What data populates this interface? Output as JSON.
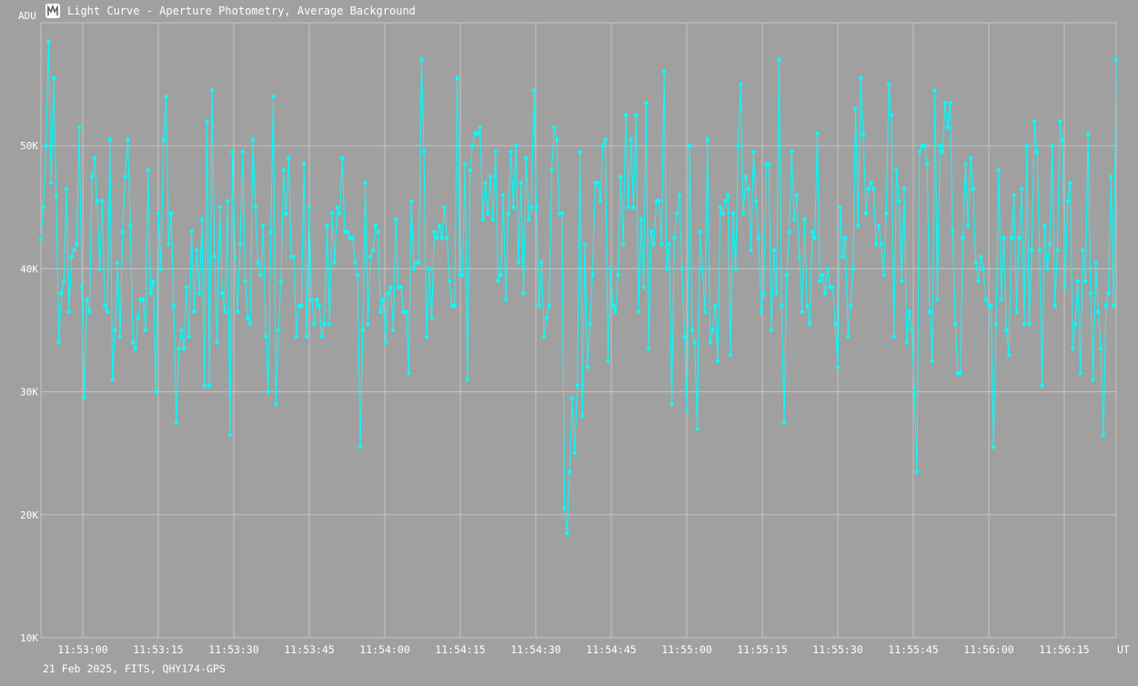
{
  "window": {
    "title": "Light Curve - Aperture Photometry, Average Background",
    "icon": "app-icon"
  },
  "footer": {
    "info": "21 Feb 2025, FITS, QHY174-GPS"
  },
  "colors": {
    "background": "#a0a0a0",
    "grid": "#c4c4c4",
    "series": "#00ffff",
    "text": "#ffffff"
  },
  "chart_data": {
    "type": "line",
    "ylabel": "ADU",
    "xlabel": "UT",
    "ylim": [
      10000,
      60000
    ],
    "xlim_seconds": [
      0,
      214
    ],
    "grid": true,
    "x_ticks": [
      "11:53:00",
      "11:53:15",
      "11:53:30",
      "11:53:45",
      "11:54:00",
      "11:54:15",
      "11:54:30",
      "11:54:45",
      "11:55:00",
      "11:55:15",
      "11:55:30",
      "11:55:45",
      "11:56:00",
      "11:56:15"
    ],
    "y_ticks": [
      "10K",
      "20K",
      "30K",
      "40K",
      "50K"
    ],
    "series": [
      {
        "values": [
          42400,
          45000,
          50000,
          58500,
          47000,
          55500,
          46000,
          34000,
          38000,
          39000,
          46500,
          36500,
          41000,
          41500,
          42000,
          51500,
          38500,
          29500,
          37500,
          36500,
          47500,
          49000,
          45500,
          40000,
          45500,
          37000,
          36500,
          50500,
          31000,
          35000,
          40500,
          34500,
          43000,
          47500,
          50500,
          43500,
          34000,
          33500,
          36000,
          37500,
          37500,
          35000,
          48000,
          38000,
          39000,
          30000,
          44500,
          40000,
          50500,
          54000,
          42000,
          44500,
          37000,
          27500,
          33500,
          35000,
          33500,
          38500,
          34500,
          43000,
          36500,
          41500,
          38000,
          44000,
          30500,
          52000,
          30500,
          54500,
          41000,
          34000,
          45000,
          38000,
          36500,
          45500,
          26500,
          49500,
          41000,
          36500,
          42000,
          49500,
          39000,
          36000,
          35500,
          50500,
          45000,
          40500,
          39500,
          43500,
          34500,
          30000,
          43000,
          54000,
          29000,
          35000,
          39000,
          48000,
          44500,
          49000,
          41000,
          41000,
          34500,
          37000,
          37000,
          48500,
          34500,
          45000,
          37500,
          35500,
          37500,
          37000,
          34500,
          35500,
          43500,
          35500,
          44500,
          40500,
          45000,
          44500,
          49000,
          43000,
          43000,
          42500,
          42500,
          40500,
          39500,
          25500,
          35000,
          47000,
          35500,
          41000,
          41500,
          43500,
          43000,
          36500,
          37500,
          34000,
          38000,
          38500,
          35000,
          44000,
          38500,
          38500,
          36500,
          36500,
          31500,
          45500,
          40000,
          40500,
          40500,
          57000,
          49500,
          34500,
          40000,
          36000,
          43000,
          42500,
          43500,
          42500,
          45000,
          42500,
          39000,
          37000,
          37000,
          55500,
          39500,
          39500,
          48500,
          31000,
          48000,
          50000,
          51000,
          51000,
          51500,
          44000,
          47000,
          44500,
          47500,
          44000,
          49500,
          39000,
          39500,
          46000,
          37500,
          44500,
          49500,
          45000,
          50000,
          40500,
          47000,
          38000,
          49000,
          44000,
          45000,
          54500,
          45000,
          37000,
          40500,
          34500,
          36000,
          37000,
          48000,
          51500,
          50500,
          44500,
          44500,
          20500,
          18500,
          23500,
          29500,
          25000,
          30500,
          49500,
          28000,
          42000,
          32000,
          35500,
          39500,
          47000,
          47000,
          45500,
          50000,
          50500,
          32500,
          40000,
          37000,
          36500,
          39500,
          47500,
          42000,
          52500,
          45000,
          50500,
          45000,
          52500,
          36500,
          44000,
          38500,
          53500,
          33500,
          43000,
          42000,
          45500,
          45500,
          42000,
          56000,
          40000,
          42000,
          29000,
          42500,
          44500,
          46000,
          40000,
          34500,
          28500,
          50000,
          35000,
          34000,
          27000,
          43000,
          40000,
          36500,
          50500,
          34000,
          35000,
          37000,
          32500,
          45000,
          44500,
          45500,
          46000,
          33000,
          44500,
          40000,
          50000,
          55000,
          44500,
          47500,
          46500,
          41500,
          49500,
          45500,
          42500,
          36500,
          38000,
          48500,
          48500,
          35000,
          41500,
          38000,
          57000,
          37000,
          27500,
          39500,
          43000,
          49500,
          44000,
          46000,
          41000,
          36500,
          44000,
          37000,
          35500,
          43000,
          42500,
          51000,
          39000,
          39500,
          38000,
          40000,
          38500,
          38500,
          35500,
          32000,
          45000,
          41000,
          42500,
          34500,
          37000,
          40000,
          53000,
          43500,
          55500,
          51000,
          44500,
          46500,
          47000,
          46500,
          42000,
          43500,
          42000,
          39500,
          44500,
          55000,
          52500,
          34500,
          48000,
          45500,
          39000,
          46500,
          34000,
          36500,
          35000,
          30000,
          23500,
          49500,
          50000,
          50000,
          48500,
          36500,
          32500,
          54500,
          37500,
          50000,
          49500,
          53500,
          51500,
          53500,
          43000,
          35500,
          31500,
          31500,
          42500,
          48500,
          43500,
          49000,
          46500,
          40500,
          39000,
          41000,
          40000,
          37500,
          37000,
          37000,
          25500,
          35500,
          48000,
          37500,
          42500,
          35000,
          33000,
          42500,
          46000,
          36500,
          42500,
          46500,
          35500,
          50000,
          35500,
          41500,
          52000,
          49500,
          41500,
          30500,
          43500,
          40000,
          42000,
          50000,
          37000,
          41500,
          52000,
          50500,
          38500,
          45500,
          47000,
          33500,
          35500,
          39000,
          31500,
          41500,
          39000,
          51000,
          38000,
          31000,
          40500,
          36500,
          33500,
          26500,
          37000,
          38000,
          47500,
          37000,
          57000
        ]
      }
    ]
  }
}
